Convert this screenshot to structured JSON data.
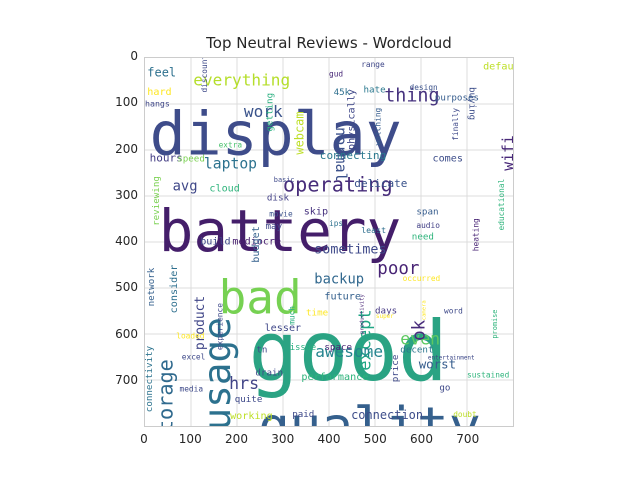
{
  "chart_data": {
    "type": "wordcloud",
    "title": "Top Neutral Reviews - Wordcloud",
    "xlim": [
      0,
      800
    ],
    "ylim": [
      800,
      0
    ],
    "x_ticks": [
      "0",
      "100",
      "200",
      "300",
      "400",
      "500",
      "600",
      "700"
    ],
    "y_ticks": [
      "0",
      "100",
      "200",
      "300",
      "400",
      "500",
      "600",
      "700"
    ],
    "grid": true,
    "words": [
      {
        "text": "good",
        "x": 225,
        "y": 700,
        "size": 180,
        "color": "#2aa383",
        "rotate": 0
      },
      {
        "text": "battery",
        "x": 30,
        "y": 420,
        "size": 125,
        "color": "#441e6a",
        "rotate": 0
      },
      {
        "text": "display",
        "x": 10,
        "y": 210,
        "size": 130,
        "color": "#3e4c8a",
        "rotate": 0
      },
      {
        "text": "quality",
        "x": 245,
        "y": 840,
        "size": 115,
        "color": "#35608d",
        "rotate": 0
      },
      {
        "text": "bad",
        "x": 160,
        "y": 555,
        "size": 100,
        "color": "#76d152",
        "rotate": 0
      },
      {
        "text": "usage",
        "x": 185,
        "y": 810,
        "size": 82,
        "color": "#2c718e",
        "rotate": -90
      },
      {
        "text": "operating",
        "x": 300,
        "y": 290,
        "size": 44,
        "color": "#472c7a",
        "rotate": 0
      },
      {
        "text": "storage",
        "x": 60,
        "y": 840,
        "size": 44,
        "color": "#306a8e",
        "rotate": -90
      },
      {
        "text": "except",
        "x": 490,
        "y": 680,
        "size": 37,
        "color": "#21a685",
        "rotate": -90
      },
      {
        "text": "everything",
        "x": 105,
        "y": 60,
        "size": 35,
        "color": "#b5de2b",
        "rotate": 0
      },
      {
        "text": "work",
        "x": 215,
        "y": 128,
        "size": 35,
        "color": "#3a538b",
        "rotate": 0
      },
      {
        "text": "laptop",
        "x": 128,
        "y": 240,
        "size": 32,
        "color": "#2c728e",
        "rotate": 0
      },
      {
        "text": "thing",
        "x": 520,
        "y": 95,
        "size": 40,
        "color": "#46327e",
        "rotate": 0
      },
      {
        "text": "normal",
        "x": 415,
        "y": 150,
        "size": 33,
        "color": "#3b518b",
        "rotate": 90
      },
      {
        "text": "awesome",
        "x": 370,
        "y": 650,
        "size": 35,
        "color": "#25848e",
        "rotate": 0
      },
      {
        "text": "poor",
        "x": 505,
        "y": 470,
        "size": 38,
        "color": "#482475",
        "rotate": 0
      },
      {
        "text": "backup",
        "x": 368,
        "y": 490,
        "size": 30,
        "color": "#31688e",
        "rotate": 0
      },
      {
        "text": "sometimes",
        "x": 368,
        "y": 425,
        "size": 29,
        "color": "#3e4989",
        "rotate": 0
      },
      {
        "text": "even",
        "x": 555,
        "y": 623,
        "size": 36,
        "color": "#5ec962",
        "rotate": 0
      },
      {
        "text": "hrs",
        "x": 183,
        "y": 720,
        "size": 36,
        "color": "#414487",
        "rotate": 0
      },
      {
        "text": "product",
        "x": 128,
        "y": 635,
        "size": 28,
        "color": "#404688",
        "rotate": -90
      },
      {
        "text": "wifi",
        "x": 800,
        "y": 245,
        "size": 32,
        "color": "#482878",
        "rotate": -90
      },
      {
        "text": "ok",
        "x": 608,
        "y": 615,
        "size": 38,
        "color": "#472a7a",
        "rotate": -90
      },
      {
        "text": "worst",
        "x": 595,
        "y": 675,
        "size": 27,
        "color": "#365d8d",
        "rotate": 0
      },
      {
        "text": "webcam",
        "x": 345,
        "y": 210,
        "size": 26,
        "color": "#bddf26",
        "rotate": -90
      },
      {
        "text": "avg",
        "x": 60,
        "y": 288,
        "size": 30,
        "color": "#3f4788",
        "rotate": 0
      },
      {
        "text": "connection",
        "x": 448,
        "y": 785,
        "size": 26,
        "color": "#3d4d8a",
        "rotate": 0
      },
      {
        "text": "delicate",
        "x": 455,
        "y": 280,
        "size": 24,
        "color": "#3a538b",
        "rotate": 0
      },
      {
        "text": "connecting",
        "x": 380,
        "y": 220,
        "size": 24,
        "color": "#2a788e",
        "rotate": 0
      },
      {
        "text": "feel",
        "x": 5,
        "y": 40,
        "size": 26,
        "color": "#2d708e",
        "rotate": 0
      },
      {
        "text": "physically",
        "x": 455,
        "y": 200,
        "size": 22,
        "color": "#3f4788",
        "rotate": -90
      },
      {
        "text": "getting",
        "x": 277,
        "y": 160,
        "size": 20,
        "color": "#29af7f",
        "rotate": -90
      },
      {
        "text": "performance",
        "x": 340,
        "y": 700,
        "size": 22,
        "color": "#2fb47c",
        "rotate": 0
      },
      {
        "text": "future",
        "x": 390,
        "y": 525,
        "size": 22,
        "color": "#34608d",
        "rotate": 0
      },
      {
        "text": "skip",
        "x": 345,
        "y": 340,
        "size": 22,
        "color": "#46327e",
        "rotate": 0
      },
      {
        "text": "hours",
        "x": 10,
        "y": 225,
        "size": 24,
        "color": "#433d84",
        "rotate": 0
      },
      {
        "text": "comes",
        "x": 625,
        "y": 225,
        "size": 22,
        "color": "#3d4d8a",
        "rotate": 0
      },
      {
        "text": "default",
        "x": 735,
        "y": 25,
        "size": 22,
        "color": "#bddf26",
        "rotate": 0
      },
      {
        "text": "cloud",
        "x": 140,
        "y": 290,
        "size": 22,
        "color": "#2fb47c",
        "rotate": 0
      },
      {
        "text": "disk",
        "x": 265,
        "y": 310,
        "size": 20,
        "color": "#424086",
        "rotate": 0
      },
      {
        "text": "build",
        "x": 120,
        "y": 405,
        "size": 22,
        "color": "#3f4788",
        "rotate": 0
      },
      {
        "text": "mediocre",
        "x": 190,
        "y": 405,
        "size": 22,
        "color": "#481f70",
        "rotate": 0
      },
      {
        "text": "budget",
        "x": 248,
        "y": 445,
        "size": 22,
        "color": "#34618d",
        "rotate": -90
      },
      {
        "text": "reviewing",
        "x": 30,
        "y": 365,
        "size": 20,
        "color": "#7ad151",
        "rotate": -90
      },
      {
        "text": "consider",
        "x": 70,
        "y": 555,
        "size": 22,
        "color": "#2e6f8e",
        "rotate": -90
      },
      {
        "text": "network",
        "x": 20,
        "y": 540,
        "size": 20,
        "color": "#35608d",
        "rotate": -90
      },
      {
        "text": "connectivity",
        "x": 15,
        "y": 770,
        "size": 20,
        "color": "#2c738e",
        "rotate": -90
      },
      {
        "text": "speed",
        "x": 70,
        "y": 225,
        "size": 20,
        "color": "#7ad151",
        "rotate": 0
      },
      {
        "text": "hard",
        "x": 5,
        "y": 80,
        "size": 22,
        "color": "#fde725",
        "rotate": 0
      },
      {
        "text": "hangs",
        "x": 0,
        "y": 105,
        "size": 18,
        "color": "#3f4788",
        "rotate": 0
      },
      {
        "text": "discount",
        "x": 135,
        "y": 75,
        "size": 17,
        "color": "#3e4989",
        "rotate": -90
      },
      {
        "text": "extra",
        "x": 160,
        "y": 195,
        "size": 17,
        "color": "#4ac16d",
        "rotate": 0
      },
      {
        "text": "lesser",
        "x": 260,
        "y": 594,
        "size": 22,
        "color": "#3f4788",
        "rotate": 0
      },
      {
        "text": "time",
        "x": 350,
        "y": 560,
        "size": 20,
        "color": "#fde725",
        "rotate": 0
      },
      {
        "text": "days",
        "x": 500,
        "y": 555,
        "size": 20,
        "color": "#453882",
        "rotate": 0
      },
      {
        "text": "space",
        "x": 390,
        "y": 635,
        "size": 20,
        "color": "#482475",
        "rotate": 0
      },
      {
        "text": "decent",
        "x": 555,
        "y": 640,
        "size": 20,
        "color": "#2a768e",
        "rotate": 0
      },
      {
        "text": "issue",
        "x": 315,
        "y": 635,
        "size": 19,
        "color": "#29af7f",
        "rotate": 0
      },
      {
        "text": "need",
        "x": 580,
        "y": 395,
        "size": 20,
        "color": "#2fb47c",
        "rotate": 0
      },
      {
        "text": "span",
        "x": 590,
        "y": 340,
        "size": 20,
        "color": "#365c8d",
        "rotate": 0
      },
      {
        "text": "audio",
        "x": 590,
        "y": 370,
        "size": 17,
        "color": "#424086",
        "rotate": 0
      },
      {
        "text": "movie",
        "x": 270,
        "y": 345,
        "size": 17,
        "color": "#3b528b",
        "rotate": 0
      },
      {
        "text": "may",
        "x": 262,
        "y": 372,
        "size": 20,
        "color": "#3f4788",
        "rotate": 0
      },
      {
        "text": "ips",
        "x": 400,
        "y": 365,
        "size": 17,
        "color": "#2c718e",
        "rotate": 0
      },
      {
        "text": "least",
        "x": 470,
        "y": 380,
        "size": 18,
        "color": "#2e6e8e",
        "rotate": 0
      },
      {
        "text": "basic",
        "x": 280,
        "y": 270,
        "size": 15,
        "color": "#3e4989",
        "rotate": 0
      },
      {
        "text": "buying",
        "x": 705,
        "y": 63,
        "size": 20,
        "color": "#3d4e8a",
        "rotate": 90
      },
      {
        "text": "purposes",
        "x": 630,
        "y": 92,
        "size": 20,
        "color": "#365c8d",
        "rotate": 0
      },
      {
        "text": "gud",
        "x": 400,
        "y": 40,
        "size": 17,
        "color": "#482878",
        "rotate": 0
      },
      {
        "text": "hate",
        "x": 475,
        "y": 75,
        "size": 20,
        "color": "#2a788e",
        "rotate": 0
      },
      {
        "text": "design",
        "x": 575,
        "y": 70,
        "size": 17,
        "color": "#3b528b",
        "rotate": 0
      },
      {
        "text": "range",
        "x": 470,
        "y": 20,
        "size": 17,
        "color": "#3f4788",
        "rotate": 0
      },
      {
        "text": "45k",
        "x": 410,
        "y": 80,
        "size": 20,
        "color": "#2e6f8e",
        "rotate": 0
      },
      {
        "text": "watching",
        "x": 512,
        "y": 190,
        "size": 17,
        "color": "#365c8d",
        "rotate": -90
      },
      {
        "text": "finally",
        "x": 680,
        "y": 180,
        "size": 17,
        "color": "#3e4989",
        "rotate": -90
      },
      {
        "text": "educational",
        "x": 780,
        "y": 375,
        "size": 17,
        "color": "#2fb47c",
        "rotate": -90
      },
      {
        "text": "heating",
        "x": 725,
        "y": 420,
        "size": 17,
        "color": "#482475",
        "rotate": -90
      },
      {
        "text": "occurred",
        "x": 560,
        "y": 485,
        "size": 17,
        "color": "#fde725",
        "rotate": 0
      },
      {
        "text": "word",
        "x": 650,
        "y": 555,
        "size": 17,
        "color": "#3e4989",
        "rotate": 0
      },
      {
        "text": "super",
        "x": 502,
        "y": 565,
        "size": 13,
        "color": "#fde725",
        "rotate": 0
      },
      {
        "text": "camera",
        "x": 610,
        "y": 570,
        "size": 12,
        "color": "#fde725",
        "rotate": -90
      },
      {
        "text": "productivity",
        "x": 475,
        "y": 600,
        "size": 12,
        "color": "#482475",
        "rotate": -90
      },
      {
        "text": "much",
        "x": 325,
        "y": 580,
        "size": 17,
        "color": "#29af7f",
        "rotate": -90
      },
      {
        "text": "experience",
        "x": 168,
        "y": 635,
        "size": 17,
        "color": "#3e4989",
        "rotate": -90
      },
      {
        "text": "loaded",
        "x": 68,
        "y": 610,
        "size": 17,
        "color": "#fde725",
        "rotate": 0
      },
      {
        "text": "tn",
        "x": 242,
        "y": 640,
        "size": 20,
        "color": "#3e4989",
        "rotate": 0
      },
      {
        "text": "drain",
        "x": 240,
        "y": 690,
        "size": 20,
        "color": "#3e4989",
        "rotate": 0
      },
      {
        "text": "quite",
        "x": 195,
        "y": 748,
        "size": 20,
        "color": "#3e4989",
        "rotate": 0
      },
      {
        "text": "paid",
        "x": 320,
        "y": 780,
        "size": 20,
        "color": "#3e4989",
        "rotate": 0
      },
      {
        "text": "working",
        "x": 185,
        "y": 785,
        "size": 22,
        "color": "#bddf26",
        "rotate": 0
      },
      {
        "text": "price",
        "x": 550,
        "y": 705,
        "size": 20,
        "color": "#3e4989",
        "rotate": -90
      },
      {
        "text": "go",
        "x": 640,
        "y": 723,
        "size": 20,
        "color": "#3e4989",
        "rotate": 0
      },
      {
        "text": "sustained",
        "x": 700,
        "y": 695,
        "size": 17,
        "color": "#2fb47c",
        "rotate": 0
      },
      {
        "text": "doubt",
        "x": 670,
        "y": 780,
        "size": 17,
        "color": "#bddf26",
        "rotate": 0
      },
      {
        "text": "promise",
        "x": 765,
        "y": 610,
        "size": 15,
        "color": "#2fb47c",
        "rotate": -90
      },
      {
        "text": "entertainment",
        "x": 615,
        "y": 655,
        "size": 13,
        "color": "#3e4989",
        "rotate": 0
      },
      {
        "text": "excel",
        "x": 80,
        "y": 655,
        "size": 17,
        "color": "#3e4989",
        "rotate": 0
      },
      {
        "text": "media",
        "x": 75,
        "y": 725,
        "size": 17,
        "color": "#3e4989",
        "rotate": 0
      }
    ]
  }
}
